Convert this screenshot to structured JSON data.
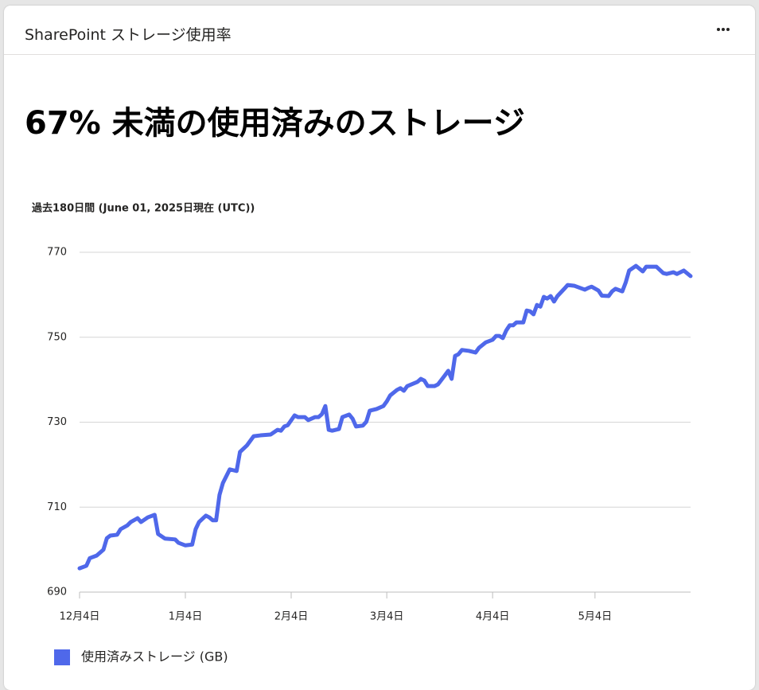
{
  "header": {
    "title": "SharePoint ストレージ使用率"
  },
  "headline": "67% 未満の使用済みのストレージ",
  "chart_data": {
    "type": "line",
    "subtitle": "過去180日間 (June 01, 2025日現在 (UTC))",
    "x": [
      0,
      2,
      3,
      5,
      7,
      8,
      9,
      11,
      12,
      14,
      15,
      17,
      18,
      20,
      22,
      23,
      25,
      28,
      29,
      31,
      33,
      34,
      35,
      37,
      38,
      39,
      40,
      41,
      42,
      44,
      46,
      47,
      49,
      51,
      53,
      56,
      58,
      59,
      60,
      61,
      63,
      64,
      66,
      67,
      69,
      70,
      71,
      72,
      73,
      74,
      76,
      77,
      79,
      80,
      81,
      83,
      84,
      85,
      87,
      89,
      90,
      91,
      93,
      94,
      95,
      96,
      99,
      100,
      101,
      102,
      104,
      105,
      107,
      108,
      109,
      110,
      111,
      112,
      114,
      116,
      117,
      119,
      121,
      122,
      123,
      124,
      125,
      126,
      127,
      128,
      130,
      131,
      132,
      133,
      134,
      135,
      136,
      137,
      138,
      139,
      140,
      142,
      143,
      145,
      148,
      149,
      150,
      152,
      153,
      155,
      156,
      157,
      159,
      160,
      161,
      163,
      165,
      166,
      169,
      171,
      172,
      174,
      175,
      177,
      179
    ],
    "series": [
      {
        "name": "使用済みストレージ (GB)",
        "color": "#4f68ea",
        "values": [
          695.6,
          696.2,
          698,
          698.6,
          700,
          702.7,
          703.3,
          703.5,
          704.8,
          705.7,
          706.5,
          707.4,
          706.5,
          707.6,
          708.2,
          703.7,
          702.6,
          702.4,
          701.6,
          701,
          701.2,
          704.8,
          706.5,
          708,
          707.6,
          706.9,
          706.9,
          712.9,
          715.7,
          718.9,
          718.5,
          723,
          724.5,
          726.7,
          726.9,
          727.1,
          728.2,
          728,
          729,
          729.3,
          731.6,
          731.2,
          731.2,
          730.5,
          731.2,
          731.2,
          731.9,
          733.8,
          728.2,
          728,
          728.4,
          731.2,
          731.8,
          730.8,
          729,
          729.2,
          730.1,
          732.7,
          733.1,
          733.8,
          734.9,
          736.3,
          737.6,
          738,
          737.4,
          738.5,
          739.5,
          740.2,
          739.8,
          738.5,
          738.5,
          738.9,
          741,
          742.1,
          740.2,
          745.6,
          746,
          747,
          746.8,
          746.4,
          747.5,
          748.8,
          749.4,
          750.3,
          750.3,
          749.8,
          751.6,
          752.8,
          752.8,
          753.5,
          753.5,
          756.3,
          756.1,
          755.4,
          757.6,
          757.2,
          759.5,
          759.1,
          759.7,
          758.4,
          759.7,
          761.4,
          762.3,
          762.1,
          761.2,
          761.6,
          761.9,
          761,
          759.8,
          759.7,
          760.8,
          761.4,
          760.8,
          762.9,
          765.7,
          766.8,
          765.5,
          766.6,
          766.6,
          765.1,
          764.9,
          765.3,
          764.9,
          765.7,
          764.4
        ]
      }
    ],
    "xlim": [
      0,
      179
    ],
    "xticks": [
      {
        "value": 0,
        "label": "12月4日"
      },
      {
        "value": 31,
        "label": "1月4日"
      },
      {
        "value": 62,
        "label": "2月4日"
      },
      {
        "value": 90,
        "label": "3月4日"
      },
      {
        "value": 121,
        "label": "4月4日"
      },
      {
        "value": 151,
        "label": "5月4日"
      }
    ],
    "ylim": [
      690,
      770
    ],
    "yticks": [
      690,
      710,
      730,
      750,
      770
    ],
    "grid": true,
    "legend": "bottom-left"
  }
}
